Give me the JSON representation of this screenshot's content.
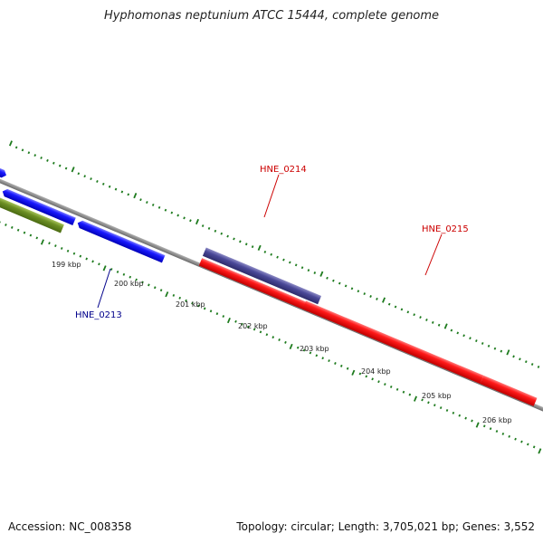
{
  "title": "Hyphomonas neptunium ATCC 15444, complete genome",
  "footer": {
    "accession": "Accession: NC_008358",
    "stats": "Topology: circular; Length: 3,705,021 bp; Genes: 3,552"
  },
  "colors": {
    "backbone": "#808080",
    "tick": "#1e7b1e",
    "blue_gene": "#0000ee",
    "red_gene": "#ee0000",
    "purple_gene": "#46448f",
    "olive_gene": "#6b8e23",
    "label_blue": "#00008b",
    "label_red": "#cc0000"
  },
  "scale_labels": [
    "199 kbp",
    "200 kbp",
    "201 kbp",
    "202 kbp",
    "203 kbp",
    "204 kbp",
    "205 kbp",
    "206 kbp"
  ],
  "gene_labels": [
    {
      "text": "HNE_0213",
      "color": "label_blue"
    },
    {
      "text": "HNE_0214",
      "color": "label_red"
    },
    {
      "text": "HNE_0215",
      "color": "label_red"
    }
  ]
}
